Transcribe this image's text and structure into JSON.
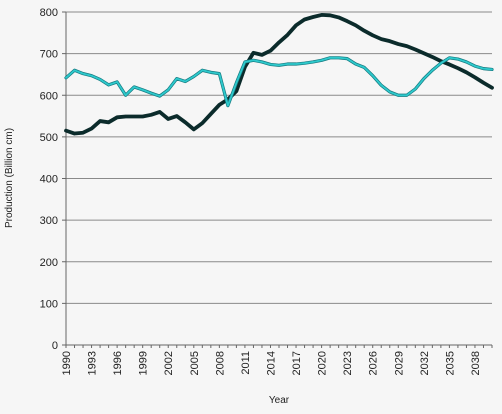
{
  "chart_data": {
    "type": "line",
    "xlabel": "Year",
    "ylabel": "Production (Billion cm)",
    "xlim": [
      1990,
      2040
    ],
    "ylim": [
      0,
      800
    ],
    "y_ticks": [
      0,
      100,
      200,
      300,
      400,
      500,
      600,
      700,
      800
    ],
    "x_ticks": [
      1990,
      1993,
      1996,
      1999,
      2002,
      2005,
      2008,
      2011,
      2014,
      2017,
      2020,
      2023,
      2026,
      2029,
      2032,
      2035,
      2038
    ],
    "grid": true,
    "legend": "none",
    "x": [
      1990,
      1991,
      1992,
      1993,
      1994,
      1995,
      1996,
      1997,
      1998,
      1999,
      2000,
      2001,
      2002,
      2003,
      2004,
      2005,
      2006,
      2007,
      2008,
      2009,
      2010,
      2011,
      2012,
      2013,
      2014,
      2015,
      2016,
      2017,
      2018,
      2019,
      2020,
      2021,
      2022,
      2023,
      2024,
      2025,
      2026,
      2027,
      2028,
      2029,
      2030,
      2031,
      2032,
      2033,
      2034,
      2035,
      2036,
      2037,
      2038,
      2039,
      2040
    ],
    "series": [
      {
        "color": "#0b2b2b",
        "values": [
          515,
          508,
          510,
          520,
          538,
          535,
          547,
          549,
          549,
          549,
          553,
          560,
          543,
          550,
          535,
          518,
          533,
          555,
          577,
          590,
          610,
          668,
          702,
          697,
          707,
          727,
          745,
          768,
          782,
          788,
          793,
          792,
          787,
          778,
          768,
          755,
          744,
          735,
          730,
          723,
          718,
          710,
          701,
          692,
          682,
          674,
          665,
          655,
          643,
          630,
          618
        ]
      },
      {
        "color": "#2ec9cc",
        "values": [
          642,
          660,
          652,
          647,
          638,
          625,
          632,
          600,
          620,
          613,
          605,
          598,
          613,
          640,
          633,
          645,
          660,
          655,
          652,
          575,
          630,
          680,
          684,
          680,
          674,
          672,
          675,
          675,
          677,
          680,
          684,
          690,
          690,
          688,
          675,
          667,
          647,
          624,
          608,
          600,
          600,
          615,
          640,
          660,
          677,
          690,
          687,
          680,
          670,
          664,
          662
        ]
      }
    ]
  }
}
